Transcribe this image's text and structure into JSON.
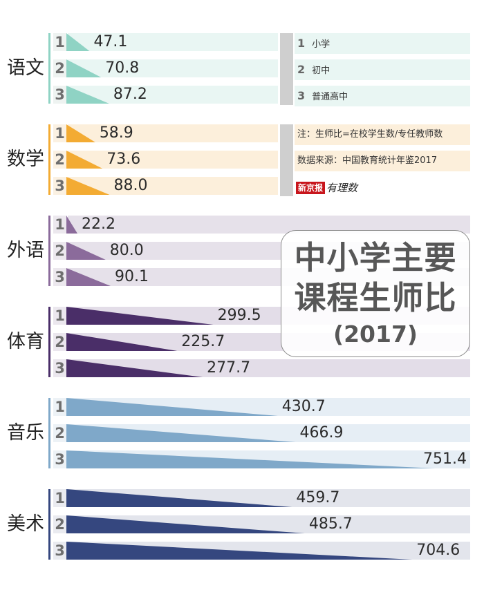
{
  "chart_data": {
    "type": "bar",
    "title_lines": [
      "中小学主要",
      "课程生师比"
    ],
    "title_year": "(2017)",
    "legend": [
      {
        "num": "1",
        "label": "小学"
      },
      {
        "num": "2",
        "label": "初中"
      },
      {
        "num": "3",
        "label": "普通高中"
      }
    ],
    "note": "注：生师比=在校学生数/专任教师数",
    "source": "数据来源：中国教育统计年鉴2017",
    "logo_box": "新京报",
    "logo_tail": "有理数",
    "categories": [
      "1",
      "2",
      "3"
    ],
    "subjects": [
      {
        "name": "语文",
        "color": "#8fd3c4",
        "bg": "#e9f6f3",
        "idx_bg": "#eef3f1",
        "values": [
          47.1,
          70.8,
          87.2
        ],
        "labels": [
          "47.1",
          "70.8",
          "87.2"
        ]
      },
      {
        "name": "数学",
        "color": "#f3ab33",
        "bg": "#fcefdb",
        "idx_bg": "#fbf1e2",
        "values": [
          58.9,
          73.6,
          88.0
        ],
        "labels": [
          "58.9",
          "73.6",
          "88.0"
        ]
      },
      {
        "name": "外语",
        "color": "#8b6b9b",
        "bg": "#e6e1ea",
        "idx_bg": "#ece8ee",
        "values": [
          22.2,
          80.0,
          90.1
        ],
        "labels": [
          "22.2",
          "80.0",
          "90.1"
        ]
      },
      {
        "name": "体育",
        "color": "#4a2e68",
        "bg": "#e3dde8",
        "idx_bg": "#ebe7ee",
        "values": [
          299.5,
          225.7,
          277.7
        ],
        "labels": [
          "299.5",
          "225.7",
          "277.7"
        ]
      },
      {
        "name": "音乐",
        "color": "#7fa8c9",
        "bg": "#e6eef5",
        "idx_bg": "#edf2f6",
        "values": [
          430.7,
          466.9,
          751.4
        ],
        "labels": [
          "430.7",
          "466.9",
          "751.4"
        ]
      },
      {
        "name": "美术",
        "color": "#35477f",
        "bg": "#e3e5ec",
        "idx_bg": "#eaebf0",
        "values": [
          459.7,
          485.7,
          704.6
        ],
        "labels": [
          "459.7",
          "485.7",
          "704.6"
        ]
      }
    ]
  }
}
